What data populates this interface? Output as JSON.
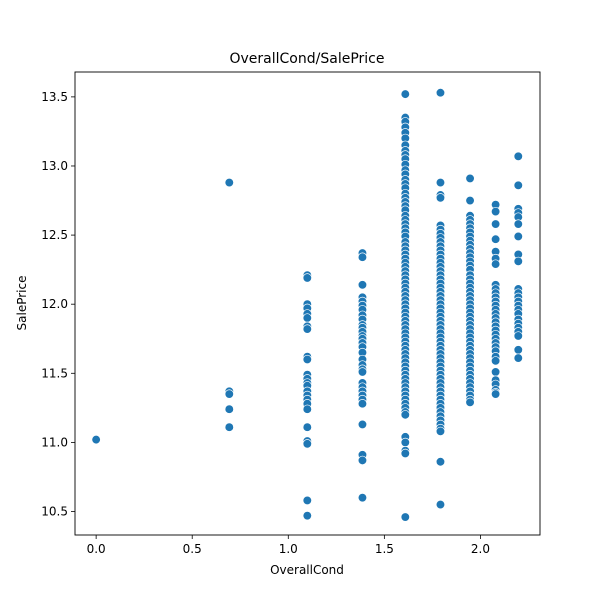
{
  "chart_data": {
    "type": "scatter",
    "title": "OverallCond/SalePrice",
    "xlabel": "OverallCond",
    "ylabel": "SalePrice",
    "xlim": [
      -0.11,
      2.31
    ],
    "ylim": [
      10.33,
      13.68
    ],
    "xticks": [
      0.0,
      0.5,
      1.0,
      1.5,
      2.0
    ],
    "xtick_labels": [
      "0.0",
      "0.5",
      "1.0",
      "1.5",
      "2.0"
    ],
    "yticks": [
      10.5,
      11.0,
      11.5,
      12.0,
      12.5,
      13.0,
      13.5
    ],
    "ytick_labels": [
      "10.5",
      "11.0",
      "11.5",
      "12.0",
      "12.5",
      "13.0",
      "13.5"
    ],
    "grid": false,
    "marker_color": "#1f77b4",
    "groups": [
      {
        "x": 0.0,
        "y": [
          11.02
        ]
      },
      {
        "x": 0.693,
        "y": [
          12.88,
          11.37,
          11.35,
          11.24,
          11.11
        ]
      },
      {
        "x": 1.099,
        "y": [
          12.21,
          12.19,
          12.0,
          11.97,
          11.93,
          11.9,
          11.84,
          11.82,
          11.62,
          11.6,
          11.49,
          11.46,
          11.43,
          11.41,
          11.37,
          11.34,
          11.31,
          11.28,
          11.24,
          11.11,
          11.01,
          10.99,
          10.58,
          10.47
        ]
      },
      {
        "x": 1.386,
        "y": [
          12.37,
          12.34,
          12.14,
          12.05,
          12.02,
          11.99,
          11.96,
          11.92,
          11.89,
          11.85,
          11.83,
          11.8,
          11.77,
          11.75,
          11.72,
          11.69,
          11.65,
          11.6,
          11.56,
          11.53,
          11.51,
          11.43,
          11.4,
          11.37,
          11.34,
          11.31,
          11.28,
          11.13,
          10.91,
          10.87,
          10.6
        ]
      },
      {
        "x": 1.609,
        "y": [
          13.52,
          13.35,
          13.32,
          13.28,
          13.24,
          13.2,
          13.15,
          13.11,
          13.08,
          13.05,
          13.01,
          12.97,
          12.94,
          12.9,
          12.87,
          12.84,
          12.8,
          12.77,
          12.74,
          12.71,
          12.68,
          12.64,
          12.61,
          12.58,
          12.55,
          12.52,
          12.49,
          12.45,
          12.42,
          12.39,
          12.36,
          12.33,
          12.3,
          12.27,
          12.24,
          12.21,
          12.18,
          12.15,
          12.12,
          12.09,
          12.06,
          12.03,
          12.0,
          11.97,
          11.94,
          11.91,
          11.88,
          11.85,
          11.82,
          11.79,
          11.76,
          11.73,
          11.7,
          11.67,
          11.64,
          11.61,
          11.58,
          11.55,
          11.52,
          11.49,
          11.46,
          11.43,
          11.4,
          11.37,
          11.34,
          11.31,
          11.28,
          11.25,
          11.22,
          11.2,
          11.04,
          11.0,
          10.94,
          10.92,
          10.46
        ]
      },
      {
        "x": 1.792,
        "y": [
          13.53,
          12.88,
          12.79,
          12.77,
          12.57,
          12.54,
          12.51,
          12.48,
          12.45,
          12.42,
          12.39,
          12.36,
          12.33,
          12.3,
          12.27,
          12.24,
          12.21,
          12.18,
          12.15,
          12.12,
          12.09,
          12.06,
          12.03,
          12.0,
          11.97,
          11.94,
          11.91,
          11.88,
          11.85,
          11.82,
          11.79,
          11.76,
          11.73,
          11.7,
          11.67,
          11.64,
          11.61,
          11.58,
          11.55,
          11.52,
          11.49,
          11.46,
          11.43,
          11.4,
          11.37,
          11.34,
          11.31,
          11.28,
          11.25,
          11.22,
          11.19,
          11.16,
          11.13,
          11.1,
          11.08,
          10.86,
          10.55
        ]
      },
      {
        "x": 1.946,
        "y": [
          12.91,
          12.75,
          12.64,
          12.61,
          12.58,
          12.55,
          12.52,
          12.49,
          12.46,
          12.43,
          12.4,
          12.37,
          12.34,
          12.31,
          12.28,
          12.25,
          12.21,
          12.18,
          12.15,
          12.12,
          12.09,
          12.06,
          12.03,
          12.0,
          11.97,
          11.94,
          11.91,
          11.88,
          11.85,
          11.82,
          11.79,
          11.76,
          11.73,
          11.7,
          11.67,
          11.64,
          11.61,
          11.58,
          11.55,
          11.52,
          11.49,
          11.46,
          11.43,
          11.4,
          11.37,
          11.34,
          11.31,
          11.29
        ]
      },
      {
        "x": 2.079,
        "y": [
          12.72,
          12.67,
          12.58,
          12.47,
          12.38,
          12.33,
          12.29,
          12.14,
          12.11,
          12.08,
          12.05,
          12.02,
          11.99,
          11.96,
          11.93,
          11.9,
          11.87,
          11.84,
          11.81,
          11.78,
          11.75,
          11.72,
          11.69,
          11.66,
          11.62,
          11.59,
          11.51,
          11.45,
          11.42,
          11.38,
          11.36,
          11.35
        ]
      },
      {
        "x": 2.197,
        "y": [
          13.07,
          12.86,
          12.69,
          12.66,
          12.63,
          12.58,
          12.49,
          12.36,
          12.31,
          12.11,
          12.08,
          12.05,
          12.02,
          11.99,
          11.96,
          11.93,
          11.89,
          11.86,
          11.83,
          11.8,
          11.77,
          11.67,
          11.61
        ]
      }
    ]
  }
}
